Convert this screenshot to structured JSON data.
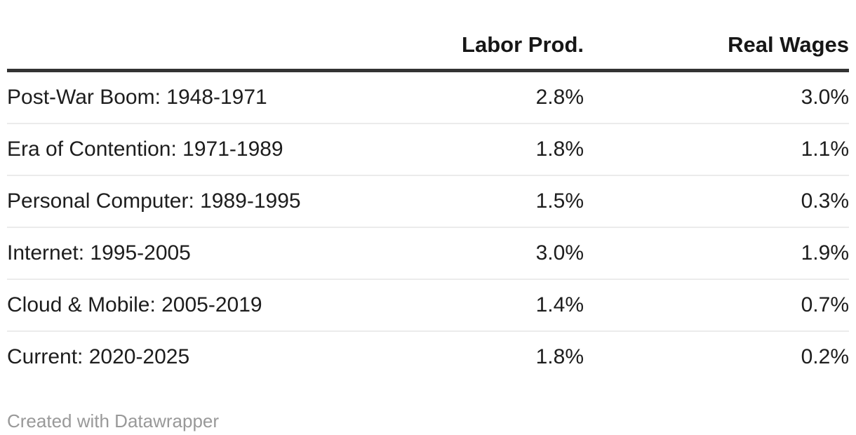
{
  "chart_data": {
    "type": "table",
    "columns": [
      "",
      "Labor Prod.",
      "Real Wages"
    ],
    "categories": [
      "Post-War Boom: 1948-1971",
      "Era of Contention: 1971-1989",
      "Personal Computer: 1989-1995",
      "Internet: 1995-2005",
      "Cloud & Mobile: 2005-2019",
      "Current: 2020-2025"
    ],
    "series": [
      {
        "name": "Labor Prod.",
        "values": [
          2.8,
          1.8,
          1.5,
          3.0,
          1.4,
          1.8
        ]
      },
      {
        "name": "Real Wages",
        "values": [
          3.0,
          1.1,
          0.3,
          1.9,
          0.7,
          0.2
        ]
      }
    ],
    "unit": "%",
    "grid": "horizontal-row-dividers",
    "legend_position": "none"
  },
  "table": {
    "columns": [
      "",
      "Labor Prod.",
      "Real Wages"
    ],
    "rows": [
      {
        "label": "Post-War Boom: 1948-1971",
        "labor_prod": "2.8%",
        "real_wages": "3.0%"
      },
      {
        "label": "Era of Contention: 1971-1989",
        "labor_prod": "1.8%",
        "real_wages": "1.1%"
      },
      {
        "label": "Personal Computer: 1989-1995",
        "labor_prod": "1.5%",
        "real_wages": "0.3%"
      },
      {
        "label": "Internet: 1995-2005",
        "labor_prod": "3.0%",
        "real_wages": "1.9%"
      },
      {
        "label": "Cloud & Mobile: 2005-2019",
        "labor_prod": "1.4%",
        "real_wages": "0.7%"
      },
      {
        "label": "Current: 2020-2025",
        "labor_prod": "1.8%",
        "real_wages": "0.2%"
      }
    ]
  },
  "footer": {
    "text": "Created with Datawrapper"
  },
  "colors": {
    "body_text": "#1d1d1d",
    "header_text": "#161616",
    "header_border": "#333333",
    "row_divider": "#ebebeb",
    "footer_text": "#999999",
    "background": "#ffffff"
  }
}
